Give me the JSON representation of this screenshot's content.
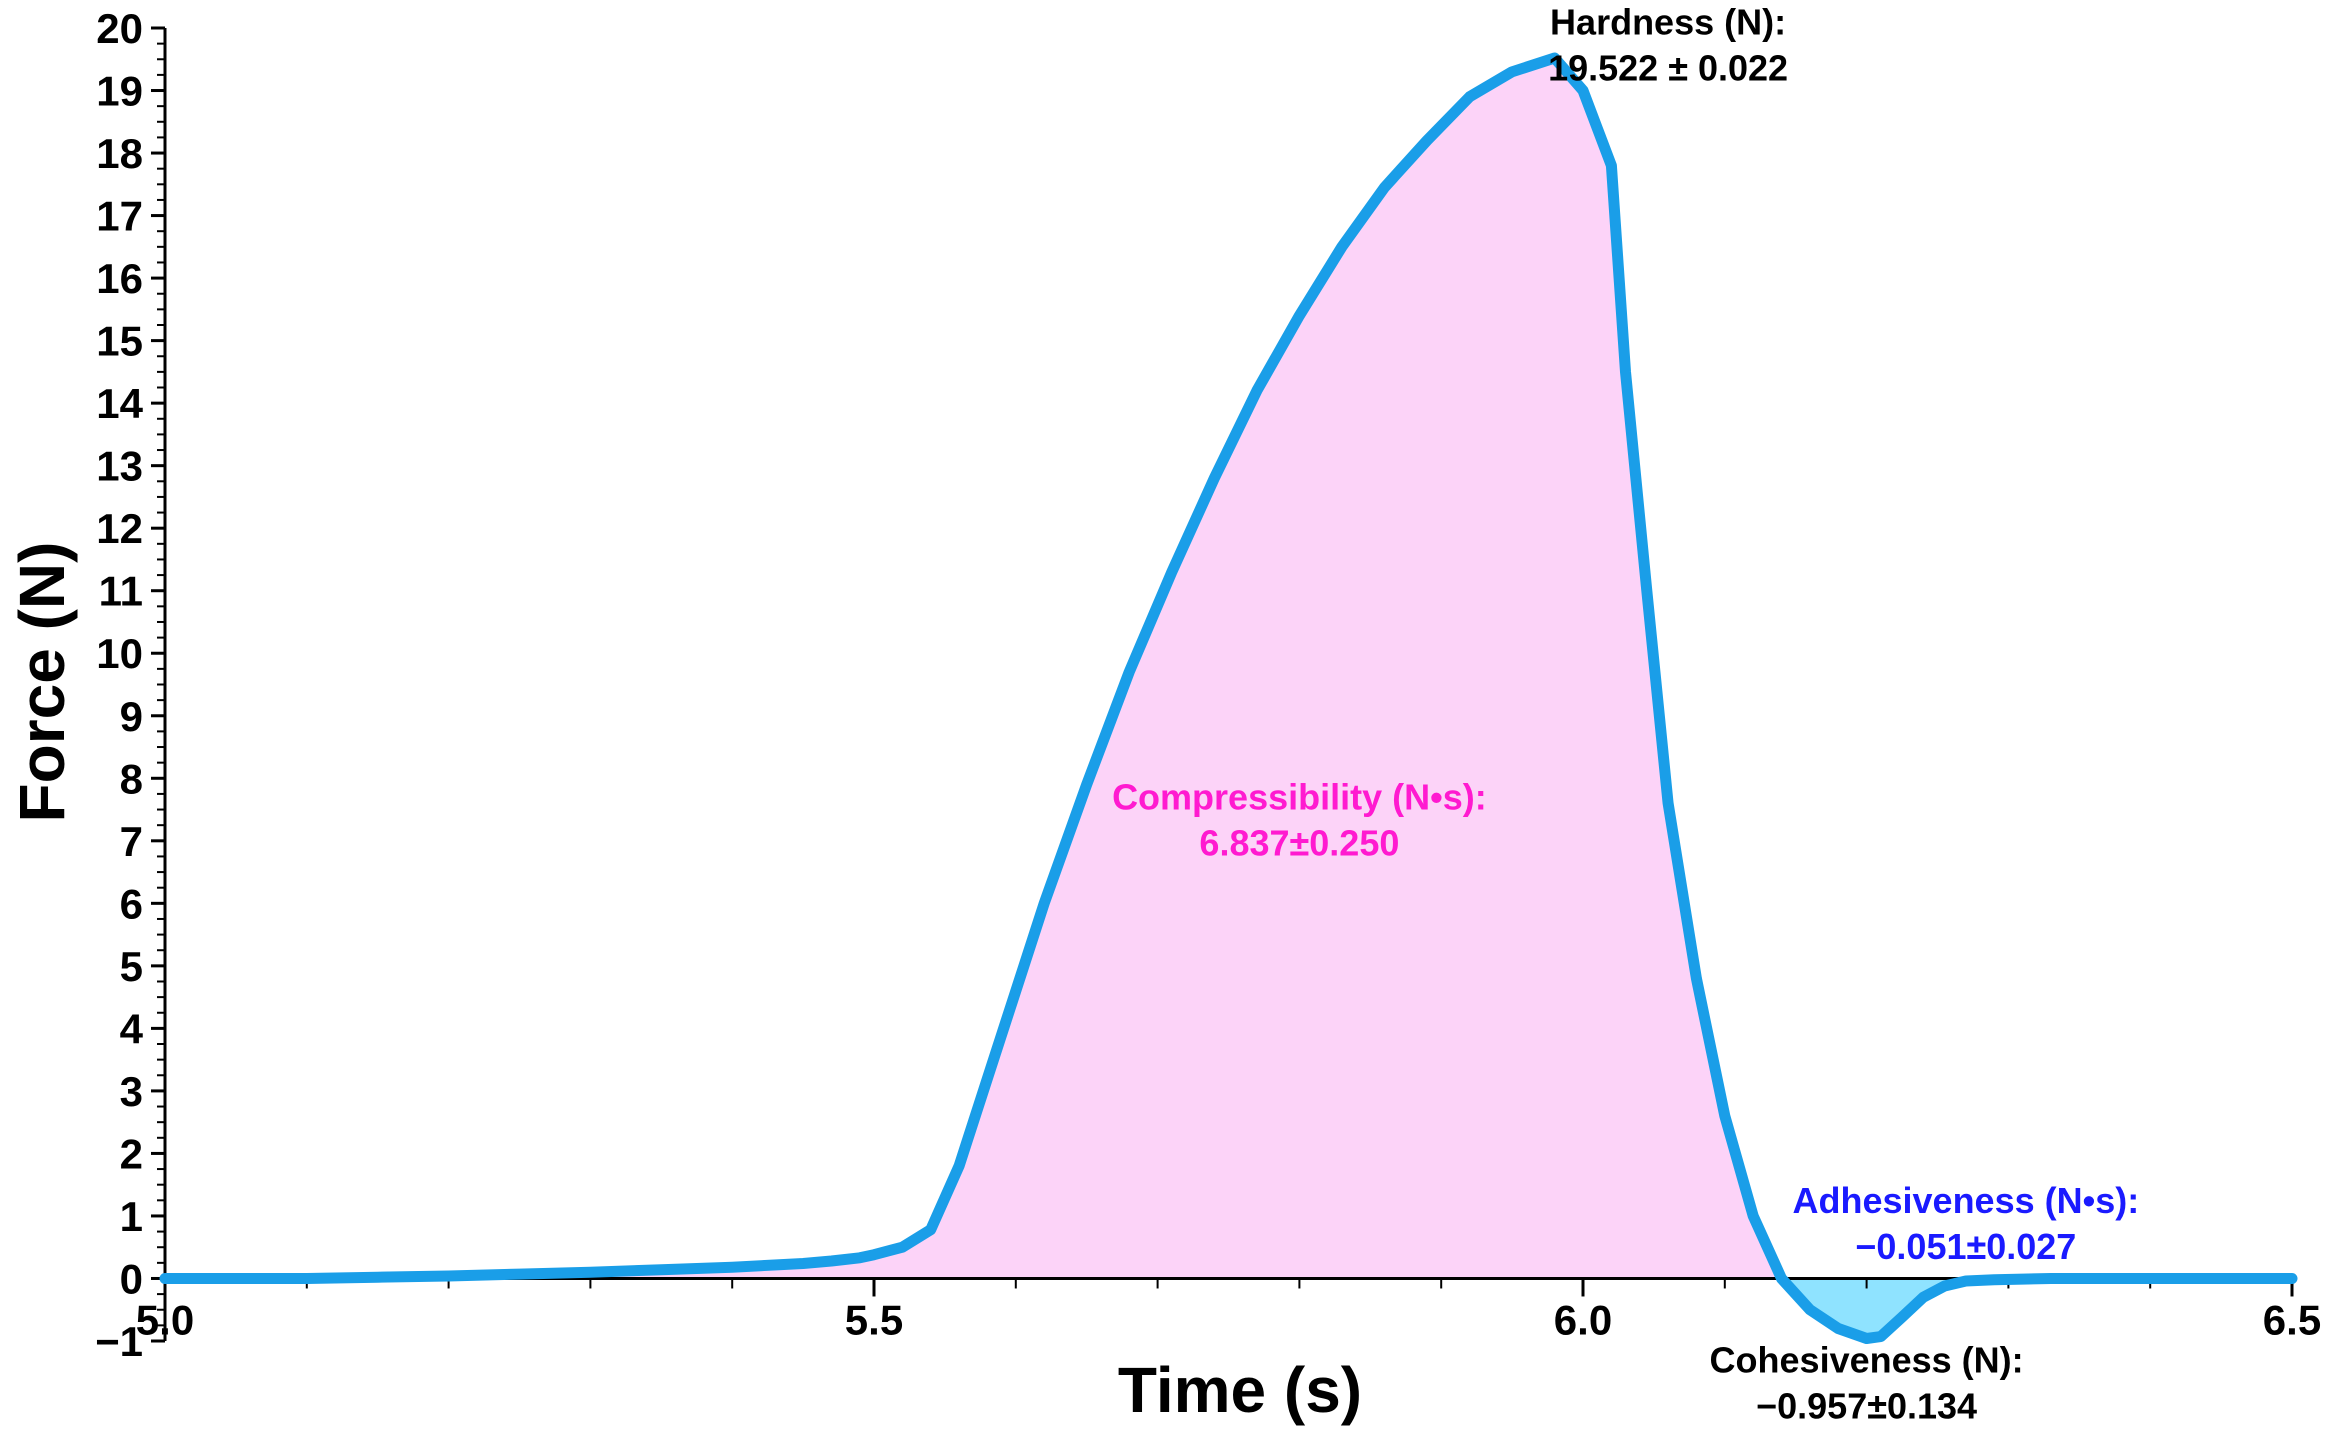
{
  "colors": {
    "line": "#1a9ee8",
    "compress_fill": "#fcd3f8",
    "adhesive_fill": "#8fe3ff",
    "compress_text": "#ff1ad0",
    "adhesive_text": "#1a1aff",
    "text": "#000000",
    "axis": "#000000"
  },
  "chart_data": {
    "type": "area",
    "title": "",
    "xlabel": "Time (s)",
    "ylabel": "Force (N)",
    "xlim": [
      5.0,
      6.5
    ],
    "ylim": [
      -1,
      20
    ],
    "grid": false,
    "x_ticks": [
      "5.0",
      "5.5",
      "6.0",
      "6.5"
    ],
    "x_tick_values": [
      5.0,
      5.5,
      6.0,
      6.5
    ],
    "y_ticks": [
      "−1",
      "0",
      "1",
      "2",
      "3",
      "4",
      "5",
      "6",
      "7",
      "8",
      "9",
      "10",
      "11",
      "12",
      "13",
      "14",
      "15",
      "16",
      "17",
      "18",
      "19",
      "20"
    ],
    "y_tick_values": [
      -1,
      0,
      1,
      2,
      3,
      4,
      5,
      6,
      7,
      8,
      9,
      10,
      11,
      12,
      13,
      14,
      15,
      16,
      17,
      18,
      19,
      20
    ],
    "series": [
      {
        "x": [
          5.0,
          5.05,
          5.1,
          5.15,
          5.2,
          5.25,
          5.3,
          5.35,
          5.4,
          5.45,
          5.47,
          5.49,
          5.5,
          5.52,
          5.54,
          5.56,
          5.58,
          5.6,
          5.62,
          5.65,
          5.68,
          5.71,
          5.74,
          5.77,
          5.8,
          5.83,
          5.86,
          5.89,
          5.92,
          5.95,
          5.98,
          6.0,
          6.02,
          6.03,
          6.045,
          6.06,
          6.08,
          6.1,
          6.12,
          6.14,
          6.16,
          6.18,
          6.2,
          6.21,
          6.225,
          6.24,
          6.255,
          6.27,
          6.29,
          6.31,
          6.33,
          6.36,
          6.4,
          6.45,
          6.5
        ],
        "y": [
          0.0,
          0.0,
          0.0,
          0.02,
          0.04,
          0.07,
          0.1,
          0.14,
          0.18,
          0.24,
          0.28,
          0.33,
          0.38,
          0.5,
          0.78,
          1.8,
          3.2,
          4.6,
          6.0,
          7.9,
          9.7,
          11.3,
          12.8,
          14.2,
          15.4,
          16.5,
          17.45,
          18.2,
          18.9,
          19.3,
          19.52,
          19.0,
          17.8,
          14.5,
          11.0,
          7.6,
          4.8,
          2.6,
          1.0,
          0.0,
          -0.5,
          -0.8,
          -0.96,
          -0.93,
          -0.62,
          -0.3,
          -0.12,
          -0.04,
          -0.02,
          -0.01,
          0.0,
          0.0,
          0.0,
          0.0,
          0.0
        ]
      }
    ],
    "annotations": [
      {
        "label": "Hardness (N):",
        "value": "19.522 ± 0.022",
        "color_key": "text",
        "x": 6.06,
        "y": 19.9
      },
      {
        "label": "Compressibility (N•s):",
        "value": "6.837±0.250",
        "color_key": "compress_text",
        "x": 5.8,
        "y": 7.5
      },
      {
        "label": "Adhesiveness (N•s):",
        "value": "−0.051±0.027",
        "color_key": "adhesive_text",
        "x": 6.27,
        "y": 1.05
      },
      {
        "label": "Cohesiveness (N):",
        "value": "−0.957±0.134",
        "color_key": "text",
        "x": 6.2,
        "y": -1.5
      }
    ],
    "zero_crossings": [
      6.143,
      6.303
    ]
  }
}
